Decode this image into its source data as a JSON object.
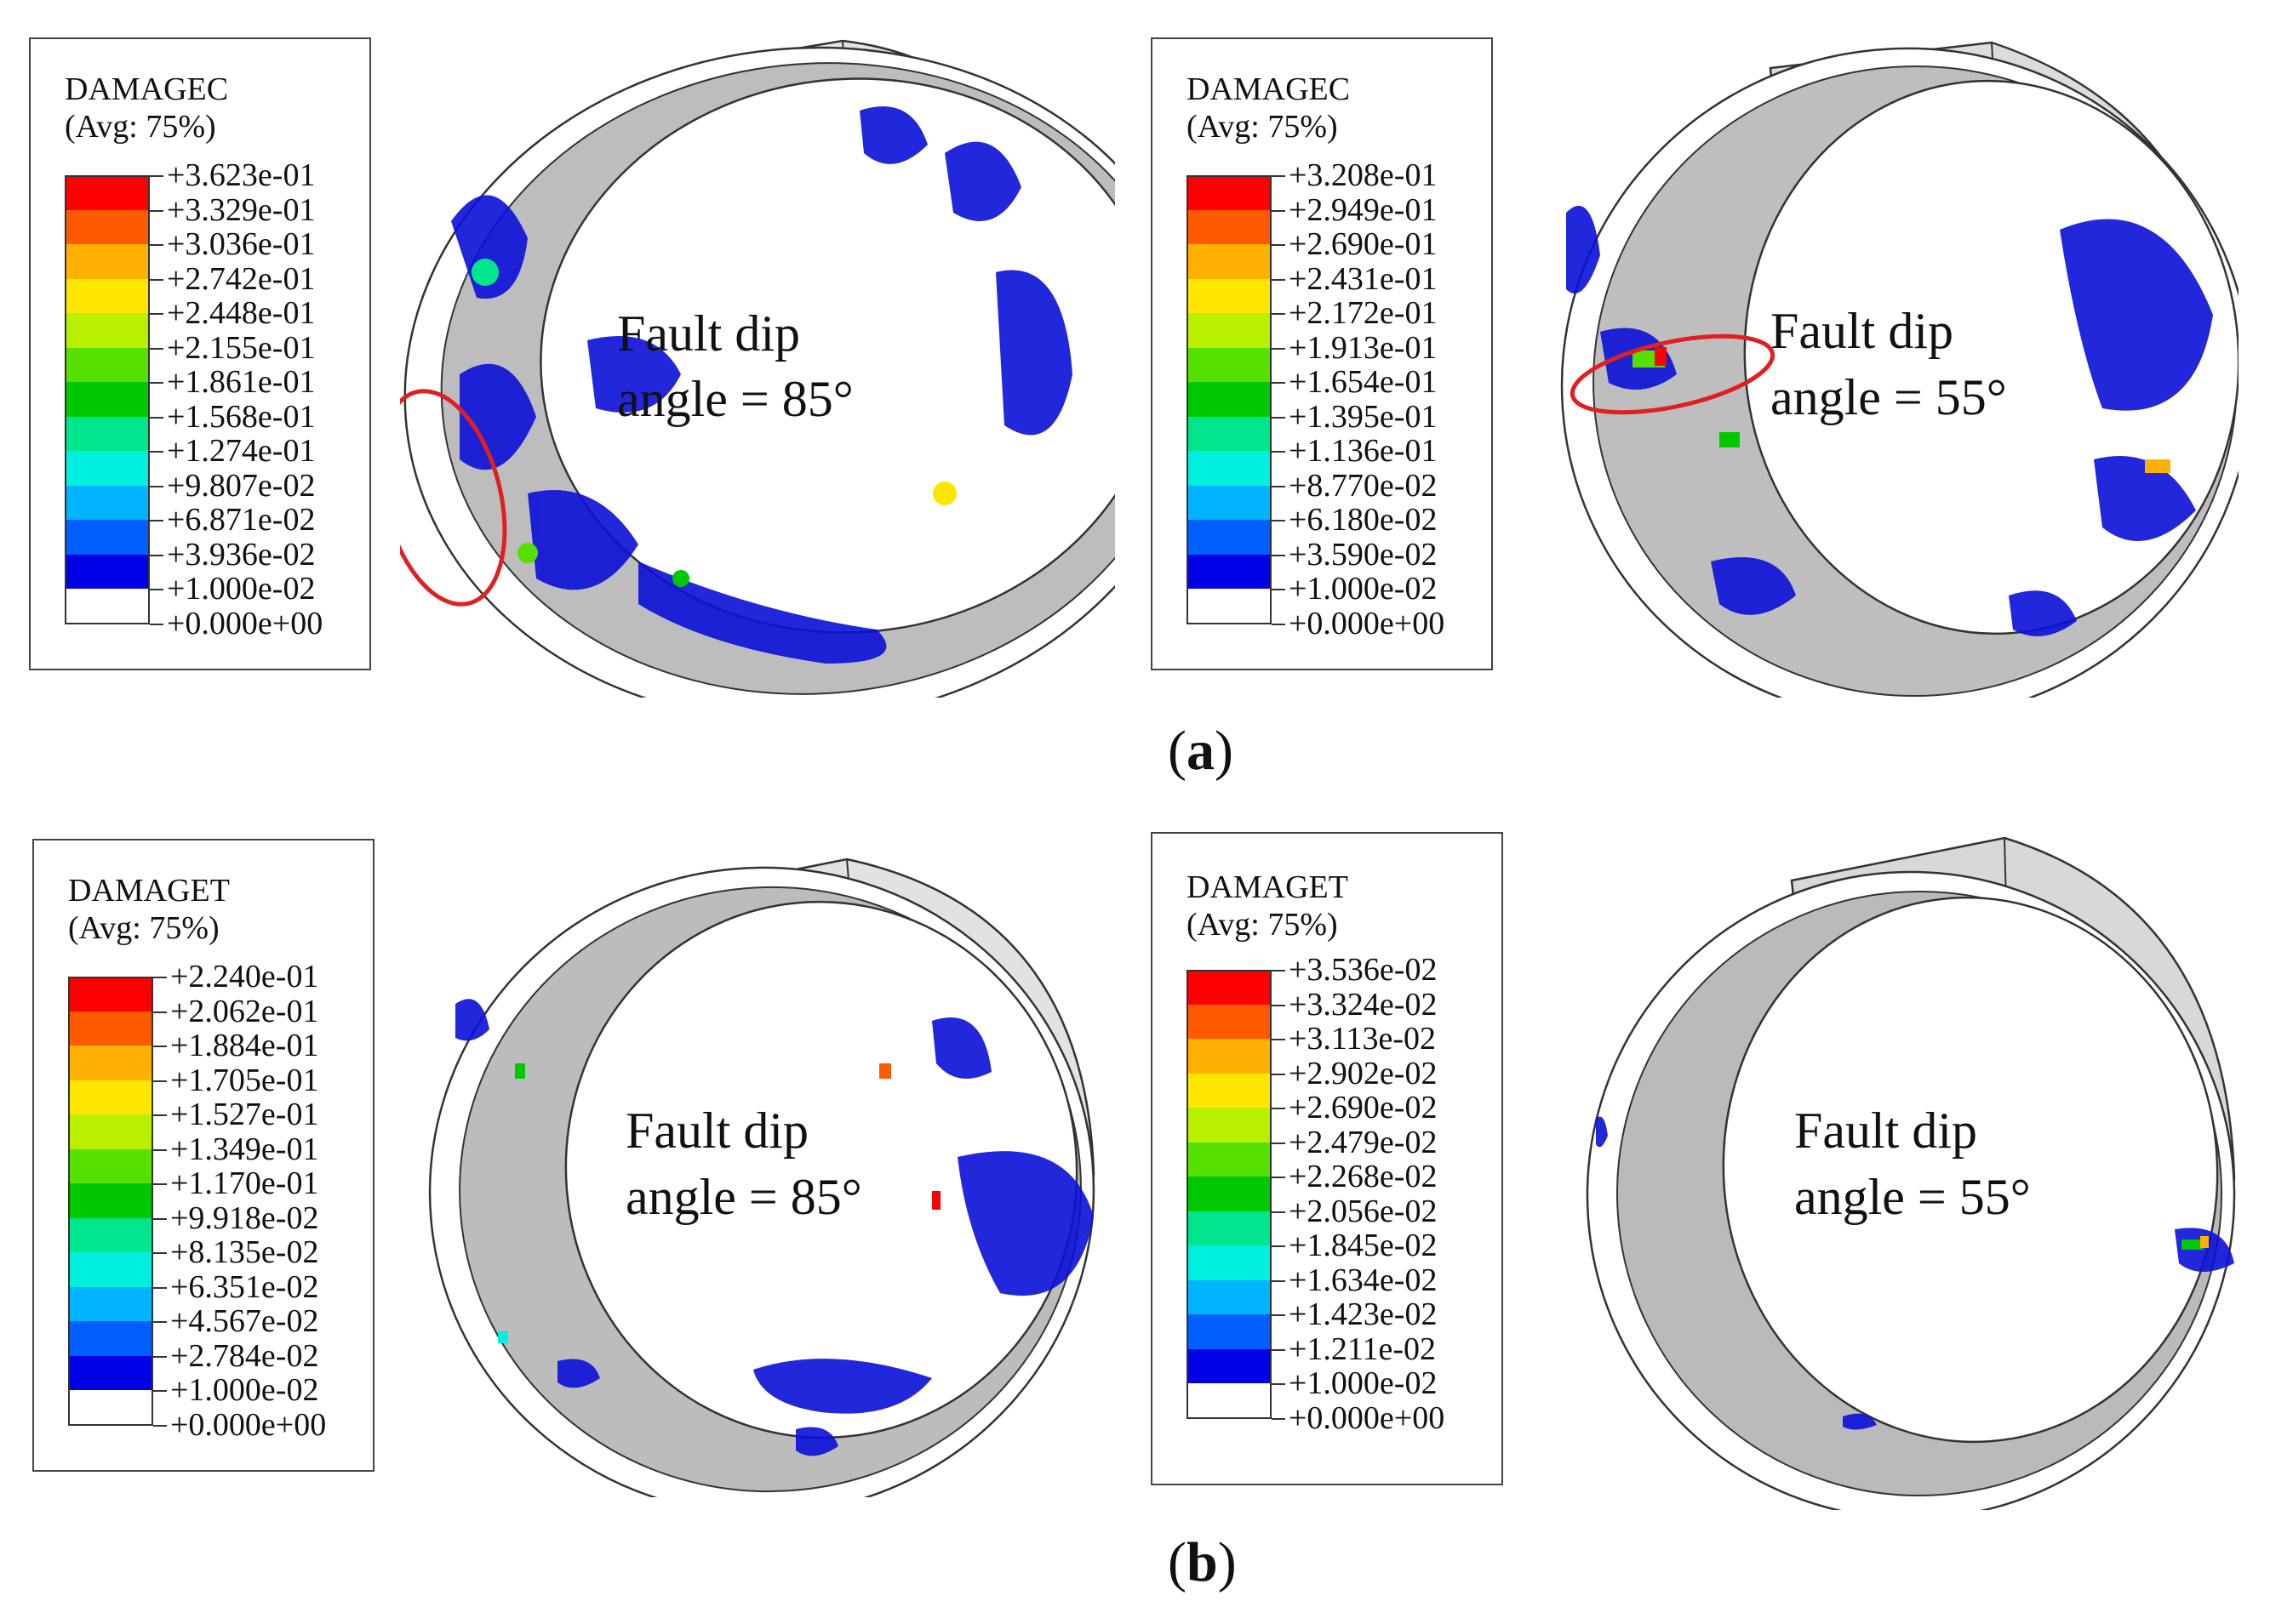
{
  "colors": {
    "levels": [
      "#ff0000",
      "#ff5a00",
      "#ffb000",
      "#ffe600",
      "#b8f000",
      "#56e000",
      "#00c800",
      "#00e68c",
      "#00f0e0",
      "#00b4ff",
      "#0060ff",
      "#0000e6",
      "#ffffff"
    ],
    "ring_face": "#e8e8e8",
    "ring_inner": "#b9b9b9",
    "highlight": "#e02020"
  },
  "panel_a": {
    "caption_open": "(",
    "caption_letter": "a",
    "caption_close": ")",
    "left": {
      "legend": {
        "variable": "DAMAGEC",
        "averaging": "(Avg: 75%)",
        "values": [
          "+3.623e-01",
          "+3.329e-01",
          "+3.036e-01",
          "+2.742e-01",
          "+2.448e-01",
          "+2.155e-01",
          "+1.861e-01",
          "+1.568e-01",
          "+1.274e-01",
          "+9.807e-02",
          "+6.871e-02",
          "+3.936e-02",
          "+1.000e-02",
          "+0.000e+00"
        ]
      },
      "annotation_line1": "Fault dip",
      "annotation_line2": "angle = 85°"
    },
    "right": {
      "legend": {
        "variable": "DAMAGEC",
        "averaging": "(Avg: 75%)",
        "values": [
          "+3.208e-01",
          "+2.949e-01",
          "+2.690e-01",
          "+2.431e-01",
          "+2.172e-01",
          "+1.913e-01",
          "+1.654e-01",
          "+1.395e-01",
          "+1.136e-01",
          "+8.770e-02",
          "+6.180e-02",
          "+3.590e-02",
          "+1.000e-02",
          "+0.000e+00"
        ]
      },
      "annotation_line1": "Fault dip",
      "annotation_line2": "angle = 55°"
    }
  },
  "panel_b": {
    "caption_open": "(",
    "caption_letter": "b",
    "caption_close": ")",
    "left": {
      "legend": {
        "variable": "DAMAGET",
        "averaging": "(Avg: 75%)",
        "values": [
          "+2.240e-01",
          "+2.062e-01",
          "+1.884e-01",
          "+1.705e-01",
          "+1.527e-01",
          "+1.349e-01",
          "+1.170e-01",
          "+9.918e-02",
          "+8.135e-02",
          "+6.351e-02",
          "+4.567e-02",
          "+2.784e-02",
          "+1.000e-02",
          "+0.000e+00"
        ]
      },
      "annotation_line1": "Fault dip",
      "annotation_line2": "angle = 85°"
    },
    "right": {
      "legend": {
        "variable": "DAMAGET",
        "averaging": "(Avg: 75%)",
        "values": [
          "+3.536e-02",
          "+3.324e-02",
          "+3.113e-02",
          "+2.902e-02",
          "+2.690e-02",
          "+2.479e-02",
          "+2.268e-02",
          "+2.056e-02",
          "+1.845e-02",
          "+1.634e-02",
          "+1.423e-02",
          "+1.211e-02",
          "+1.000e-02",
          "+0.000e+00"
        ]
      },
      "annotation_line1": "Fault dip",
      "annotation_line2": "angle = 55°"
    }
  }
}
